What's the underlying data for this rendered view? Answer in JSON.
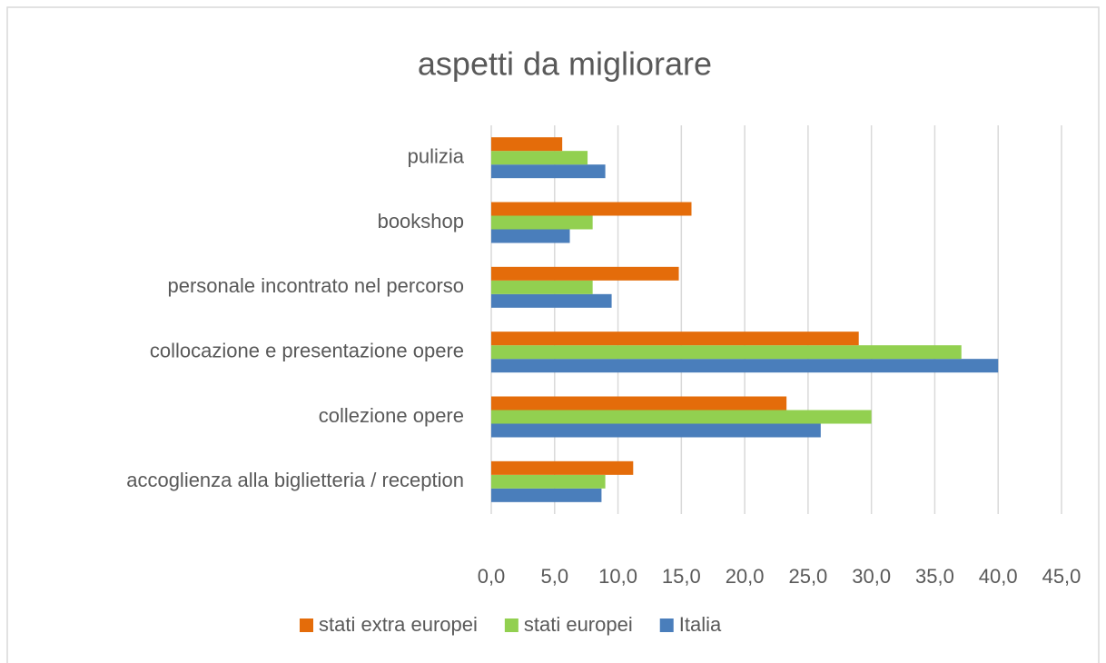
{
  "chart_data": {
    "type": "hbar",
    "title": "aspetti da migliorare",
    "categories": [
      "accoglienza alla biglietteria / reception",
      "collezione opere",
      "collocazione e presentazione opere",
      "personale incontrato nel percorso",
      "bookshop",
      "pulizia"
    ],
    "series": [
      {
        "name": "Italia",
        "color": "#4a7ebb",
        "values": [
          8.7,
          26.0,
          40.0,
          9.5,
          6.2,
          9.0
        ]
      },
      {
        "name": "stati europei",
        "color": "#92d050",
        "values": [
          9.0,
          30.0,
          37.1,
          8.0,
          8.0,
          7.6
        ]
      },
      {
        "name": "stati extra europei",
        "color": "#e46c0a",
        "values": [
          11.2,
          23.3,
          29.0,
          14.8,
          15.8,
          5.6
        ]
      }
    ],
    "xlim": [
      0,
      45
    ],
    "xticks": [
      {
        "value": 0,
        "label": "0,0"
      },
      {
        "value": 5,
        "label": "5,0"
      },
      {
        "value": 10,
        "label": "10,0"
      },
      {
        "value": 15,
        "label": "15,0"
      },
      {
        "value": 20,
        "label": "20,0"
      },
      {
        "value": 25,
        "label": "25,0"
      },
      {
        "value": 30,
        "label": "30,0"
      },
      {
        "value": 35,
        "label": "35,0"
      },
      {
        "value": 40,
        "label": "40,0"
      },
      {
        "value": 45,
        "label": "45,0"
      }
    ],
    "grid": true,
    "legend": "bottom"
  }
}
